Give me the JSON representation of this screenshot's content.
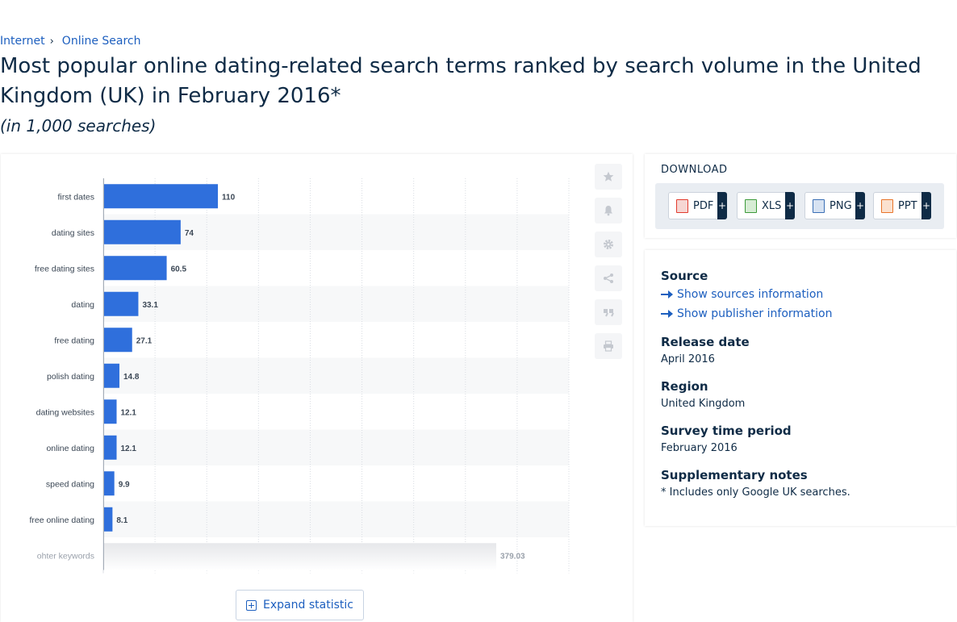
{
  "breadcrumb": {
    "items": [
      "Internet",
      "Online Search"
    ]
  },
  "title": "Most popular online dating-related search terms ranked by search volume in the United Kingdom (UK) in February 2016*",
  "subtitle": "(in 1,000 searches)",
  "chart_data": {
    "type": "bar",
    "orientation": "horizontal",
    "categories": [
      "first dates",
      "dating sites",
      "free dating sites",
      "dating",
      "free dating",
      "polish dating",
      "dating websites",
      "online dating",
      "speed dating",
      "free online dating",
      "ohter keywords"
    ],
    "values": [
      110,
      74,
      60.5,
      33.1,
      27.1,
      14.8,
      12.1,
      12.1,
      9.9,
      8.1,
      379.03
    ],
    "value_labels": [
      "110",
      "74",
      "60.5",
      "33.1",
      "27.1",
      "14.8",
      "12.1",
      "12.1",
      "9.9",
      "8.1",
      "379.03"
    ],
    "highlighted_last": true,
    "xlim": [
      0,
      450
    ],
    "grid": true,
    "bar_color": "#2f6fdc",
    "other_bar_color": "#d9dbdf"
  },
  "tools": [
    "star-icon",
    "bell-icon",
    "gear-icon",
    "share-icon",
    "quote-icon",
    "print-icon"
  ],
  "expand_label": "Expand statistic",
  "download": {
    "title": "DOWNLOAD",
    "buttons": [
      {
        "label": "PDF",
        "plus": "+",
        "color": "#e23b2e"
      },
      {
        "label": "XLS",
        "plus": "+",
        "color": "#3c9a3a"
      },
      {
        "label": "PNG",
        "plus": "+",
        "color": "#3a6fb5"
      },
      {
        "label": "PPT",
        "plus": "+",
        "color": "#e8742a"
      }
    ]
  },
  "info": {
    "source_heading": "Source",
    "show_sources": "Show sources information",
    "show_publisher": "Show publisher information",
    "release_heading": "Release date",
    "release_value": "April 2016",
    "region_heading": "Region",
    "region_value": "United Kingdom",
    "survey_heading": "Survey time period",
    "survey_value": "February 2016",
    "notes_heading": "Supplementary notes",
    "notes_value": "* Includes only Google UK searches."
  }
}
